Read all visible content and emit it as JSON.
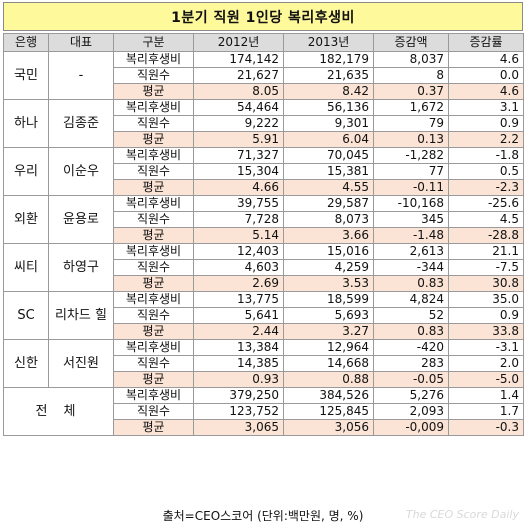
{
  "title": "1분기 직원 1인당 복리후생비",
  "headers": [
    "은행",
    "대표",
    "구분",
    "2012년",
    "2013년",
    "증감액",
    "증감률"
  ],
  "banks": [
    {
      "bank": "국민",
      "ceo": "-",
      "rows": [
        {
          "cat": "복리후생비",
          "y2012": "174,142",
          "y2013": "182,179",
          "diff": "8,037",
          "rate": "4.6"
        },
        {
          "cat": "직원수",
          "y2012": "21,627",
          "y2013": "21,635",
          "diff": "8",
          "rate": "0.0"
        },
        {
          "cat": "평균",
          "y2012": "8.05",
          "y2013": "8.42",
          "diff": "0.37",
          "rate": "4.6"
        }
      ]
    },
    {
      "bank": "하나",
      "ceo": "김종준",
      "rows": [
        {
          "cat": "복리후생비",
          "y2012": "54,464",
          "y2013": "56,136",
          "diff": "1,672",
          "rate": "3.1"
        },
        {
          "cat": "직원수",
          "y2012": "9,222",
          "y2013": "9,301",
          "diff": "79",
          "rate": "0.9"
        },
        {
          "cat": "평균",
          "y2012": "5.91",
          "y2013": "6.04",
          "diff": "0.13",
          "rate": "2.2"
        }
      ]
    },
    {
      "bank": "우리",
      "ceo": "이순우",
      "rows": [
        {
          "cat": "복리후생비",
          "y2012": "71,327",
          "y2013": "70,045",
          "diff": "-1,282",
          "rate": "-1.8"
        },
        {
          "cat": "직원수",
          "y2012": "15,304",
          "y2013": "15,381",
          "diff": "77",
          "rate": "0.5"
        },
        {
          "cat": "평균",
          "y2012": "4.66",
          "y2013": "4.55",
          "diff": "-0.11",
          "rate": "-2.3"
        }
      ]
    },
    {
      "bank": "외환",
      "ceo": "윤용로",
      "rows": [
        {
          "cat": "복리후생비",
          "y2012": "39,755",
          "y2013": "29,587",
          "diff": "-10,168",
          "rate": "-25.6"
        },
        {
          "cat": "직원수",
          "y2012": "7,728",
          "y2013": "8,073",
          "diff": "345",
          "rate": "4.5"
        },
        {
          "cat": "평균",
          "y2012": "5.14",
          "y2013": "3.66",
          "diff": "-1.48",
          "rate": "-28.8"
        }
      ]
    },
    {
      "bank": "씨티",
      "ceo": "하영구",
      "rows": [
        {
          "cat": "복리후생비",
          "y2012": "12,403",
          "y2013": "15,016",
          "diff": "2,613",
          "rate": "21.1"
        },
        {
          "cat": "직원수",
          "y2012": "4,603",
          "y2013": "4,259",
          "diff": "-344",
          "rate": "-7.5"
        },
        {
          "cat": "평균",
          "y2012": "2.69",
          "y2013": "3.53",
          "diff": "0.83",
          "rate": "30.8"
        }
      ]
    },
    {
      "bank": "SC",
      "ceo": "리차드 힐",
      "rows": [
        {
          "cat": "복리후생비",
          "y2012": "13,775",
          "y2013": "18,599",
          "diff": "4,824",
          "rate": "35.0"
        },
        {
          "cat": "직원수",
          "y2012": "5,641",
          "y2013": "5,693",
          "diff": "52",
          "rate": "0.9"
        },
        {
          "cat": "평균",
          "y2012": "2.44",
          "y2013": "3.27",
          "diff": "0.83",
          "rate": "33.8"
        }
      ]
    },
    {
      "bank": "신한",
      "ceo": "서진원",
      "rows": [
        {
          "cat": "복리후생비",
          "y2012": "13,384",
          "y2013": "12,964",
          "diff": "-420",
          "rate": "-3.1"
        },
        {
          "cat": "직원수",
          "y2012": "14,385",
          "y2013": "14,668",
          "diff": "283",
          "rate": "2.0"
        },
        {
          "cat": "평균",
          "y2012": "0.93",
          "y2013": "0.88",
          "diff": "-0.05",
          "rate": "-5.0"
        }
      ]
    }
  ],
  "total": {
    "label": "전 체",
    "rows": [
      {
        "cat": "복리후생비",
        "y2012": "379,250",
        "y2013": "384,526",
        "diff": "5,276",
        "rate": "1.4"
      },
      {
        "cat": "직원수",
        "y2012": "123,752",
        "y2013": "125,845",
        "diff": "2,093",
        "rate": "1.7"
      },
      {
        "cat": "평균",
        "y2012": "3,065",
        "y2013": "3,056",
        "diff": "-0,009",
        "rate": "-0.3"
      }
    ]
  },
  "footer": "출처=CEO스코어 (단위:백만원, 명, %)",
  "watermark": "The CEO Score Daily",
  "colors": {
    "title_bg": "#fef99a",
    "header_bg": "#dcdcdc",
    "avg_row_bg": "#fbe4d5",
    "border": "#9a9a9a"
  }
}
